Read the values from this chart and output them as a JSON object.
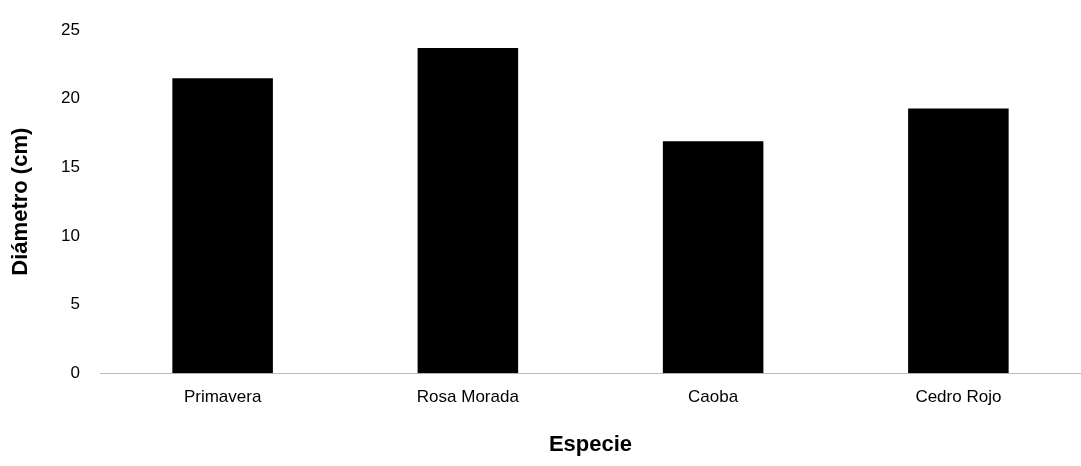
{
  "chart_data": {
    "type": "bar",
    "xlabel": "Especie",
    "ylabel": "Diámetro (cm)",
    "categories": [
      "Primavera",
      "Rosa Morada",
      "Caoba",
      "Cedro Rojo"
    ],
    "values": [
      21.5,
      23.7,
      16.9,
      19.3
    ],
    "color": "#000000",
    "ylim": [
      0,
      25
    ],
    "yticks": [
      0,
      5,
      10,
      15,
      20,
      25
    ],
    "grid": false,
    "legend": false
  }
}
